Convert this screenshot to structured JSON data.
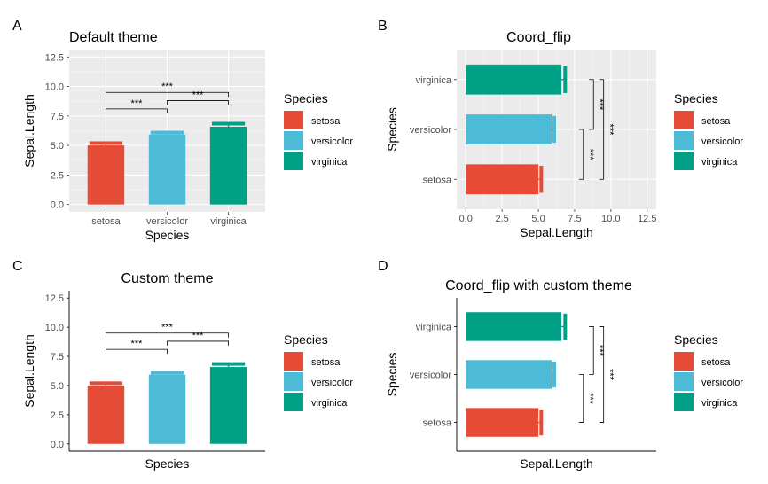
{
  "figure": {
    "legend_title": "Species",
    "legend_items": [
      {
        "label": "setosa",
        "color": "#E64B35"
      },
      {
        "label": "versicolor",
        "color": "#4DBBD5"
      },
      {
        "label": "virginica",
        "color": "#00A087"
      }
    ]
  },
  "chart_data": [
    {
      "panel": "A",
      "type": "bar",
      "title": "Default theme",
      "xlabel": "Species",
      "ylabel": "Sepal.Length",
      "categories": [
        "setosa",
        "versicolor",
        "virginica"
      ],
      "values": [
        5.006,
        5.936,
        6.588
      ],
      "error_upper": [
        5.2,
        6.1,
        6.85
      ],
      "ylim": [
        0,
        12.5
      ],
      "ticks": [
        "0.0",
        "2.5",
        "5.0",
        "7.5",
        "10.0",
        "12.5"
      ],
      "tick_values": [
        0,
        2.5,
        5,
        7.5,
        10,
        12.5
      ],
      "theme": "grey",
      "flipped": false,
      "comparisons": [
        {
          "from": 0,
          "to": 1,
          "label": "***",
          "y": 8.1
        },
        {
          "from": 1,
          "to": 2,
          "label": "***",
          "y": 8.8
        },
        {
          "from": 0,
          "to": 2,
          "label": "***",
          "y": 9.5
        }
      ],
      "legend_position": "right"
    },
    {
      "panel": "B",
      "type": "bar",
      "title": "Coord_flip",
      "xlabel": "Species",
      "ylabel": "Sepal.Length",
      "categories": [
        "setosa",
        "versicolor",
        "virginica"
      ],
      "values": [
        5.006,
        5.936,
        6.588
      ],
      "error_upper": [
        5.2,
        6.1,
        6.85
      ],
      "ylim": [
        0,
        12.5
      ],
      "ticks": [
        "0.0",
        "2.5",
        "5.0",
        "7.5",
        "10.0",
        "12.5"
      ],
      "tick_values": [
        0,
        2.5,
        5,
        7.5,
        10,
        12.5
      ],
      "theme": "grey",
      "flipped": true,
      "comparisons": [
        {
          "from": 0,
          "to": 1,
          "label": "***",
          "y": 8.1
        },
        {
          "from": 1,
          "to": 2,
          "label": "***",
          "y": 8.8
        },
        {
          "from": 0,
          "to": 2,
          "label": "***",
          "y": 9.5
        }
      ],
      "legend_position": "right"
    },
    {
      "panel": "C",
      "type": "bar",
      "title": "Custom theme",
      "xlabel": "Species",
      "ylabel": "Sepal.Length",
      "categories": [
        "setosa",
        "versicolor",
        "virginica"
      ],
      "values": [
        5.006,
        5.936,
        6.588
      ],
      "error_upper": [
        5.2,
        6.1,
        6.85
      ],
      "ylim": [
        0,
        12.5
      ],
      "ticks": [
        "0.0",
        "2.5",
        "5.0",
        "7.5",
        "10.0",
        "12.5"
      ],
      "tick_values": [
        0,
        2.5,
        5,
        7.5,
        10,
        12.5
      ],
      "theme": "classic",
      "flipped": false,
      "comparisons": [
        {
          "from": 0,
          "to": 1,
          "label": "***",
          "y": 8.1
        },
        {
          "from": 1,
          "to": 2,
          "label": "***",
          "y": 8.8
        },
        {
          "from": 0,
          "to": 2,
          "label": "***",
          "y": 9.5
        }
      ],
      "legend_position": "right"
    },
    {
      "panel": "D",
      "type": "bar",
      "title": "Coord_flip with custom theme",
      "xlabel": "Species",
      "ylabel": "Sepal.Length",
      "categories": [
        "setosa",
        "versicolor",
        "virginica"
      ],
      "values": [
        5.006,
        5.936,
        6.588
      ],
      "error_upper": [
        5.2,
        6.1,
        6.85
      ],
      "ylim": [
        0,
        12.5
      ],
      "ticks": [],
      "tick_values": [],
      "theme": "classic",
      "flipped": true,
      "comparisons": [
        {
          "from": 0,
          "to": 1,
          "label": "***",
          "y": 8.1
        },
        {
          "from": 1,
          "to": 2,
          "label": "***",
          "y": 8.8
        },
        {
          "from": 0,
          "to": 2,
          "label": "***",
          "y": 9.5
        }
      ],
      "legend_position": "right"
    }
  ]
}
